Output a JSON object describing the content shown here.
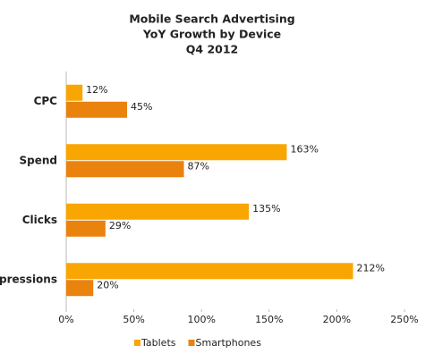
{
  "chart_data": {
    "type": "hbar",
    "title": [
      "Mobile Search Advertising",
      "YoY Growth by Device",
      "Q4 2012"
    ],
    "categories": [
      "CPC",
      "Spend",
      "Clicks",
      "Impressions"
    ],
    "series": [
      {
        "name": "Tablets",
        "color": "#f9a602",
        "values": [
          12,
          163,
          135,
          212
        ],
        "value_labels": [
          "12%",
          "163%",
          "135%",
          "212%"
        ]
      },
      {
        "name": "Smartphones",
        "color": "#ea820e",
        "values": [
          45,
          87,
          29,
          20
        ],
        "value_labels": [
          "45%",
          "87%",
          "29%",
          "20%"
        ]
      }
    ],
    "xlim": [
      0,
      250
    ],
    "xticks": [
      {
        "value": 0,
        "label": "0%"
      },
      {
        "value": 50,
        "label": "50%"
      },
      {
        "value": 100,
        "label": "100%"
      },
      {
        "value": 150,
        "label": "150%"
      },
      {
        "value": 200,
        "label": "200%"
      },
      {
        "value": 250,
        "label": "250%"
      }
    ],
    "legend": "bottom"
  }
}
